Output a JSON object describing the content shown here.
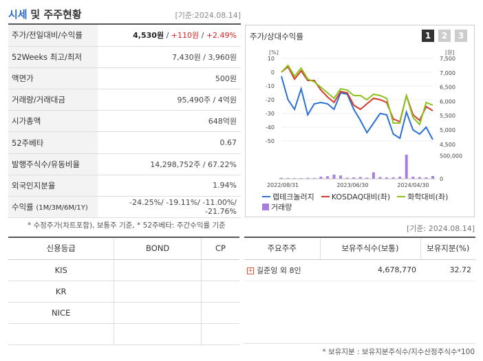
{
  "header": {
    "title_part1": "시세",
    "title_part2": "및 주주현황",
    "date": "[기준:2024.08.14]"
  },
  "info_rows": [
    {
      "label": "주가/전일대비/수익률",
      "price": "4,530원",
      "sep1": " / ",
      "change": "+110원",
      "sep2": " / ",
      "rate": "+2.49%"
    },
    {
      "label": "52Weeks 최고/최저",
      "value": "7,430원 / 3,960원"
    },
    {
      "label": "액면가",
      "value": "500원"
    },
    {
      "label": "거래량/거래대금",
      "value": "95,490주 / 4억원"
    },
    {
      "label": "시가총액",
      "value": "648억원"
    },
    {
      "label": "52주베타",
      "value": "0.67"
    },
    {
      "label": "발행주식수/유동비율",
      "value": "14,298,752주 / 67.22%"
    },
    {
      "label": "외국인지분율",
      "value": "1.94%"
    },
    {
      "label": "수익률",
      "label_sub": "(1M/3M/6M/1Y)",
      "value": "-24.25%/ -19.11%/ -11.00%/ -21.76%"
    }
  ],
  "note1": "* 수정주가(차트포함), 보통주 기준, * 52주베타: 주간수익률 기준",
  "chart_panel": {
    "title": "주가/상대수익률",
    "buttons": [
      "1",
      "2",
      "3"
    ],
    "legend": {
      "series1": "렙테크놀러지",
      "series2": "KOSDAQ대비(좌)",
      "series3": "화학대비(좌)",
      "volume": "거래량"
    }
  },
  "chart_data": {
    "type": "line",
    "left_unit": "[%]",
    "right_unit": "[원]",
    "left_ticks": [
      "10",
      "0",
      "-10",
      "-20",
      "-30",
      "-40",
      "-50"
    ],
    "right_ticks": [
      "7,500",
      "7,000",
      "6,500",
      "6,000",
      "5,500",
      "5,000",
      "4,500"
    ],
    "volume_ticks": [
      "500,000",
      "0"
    ],
    "x_labels": [
      "2022/08/31",
      "2023/06/30",
      "2024/04/30"
    ],
    "left_ylim": [
      -55,
      10
    ],
    "right_ylim": [
      4375,
      7500
    ],
    "series": [
      {
        "name": "렙테크놀러지",
        "axis": "left",
        "color": "#2a6fd6",
        "values": [
          -3,
          -20,
          -27,
          -12,
          -31,
          -23,
          -22,
          -23,
          -27,
          -15,
          -16,
          -27,
          -35,
          -44,
          -37,
          -30,
          -31,
          -45,
          -48,
          -29,
          -42,
          -45,
          -40,
          -49
        ]
      },
      {
        "name": "KOSDAQ대비(좌)",
        "axis": "left",
        "color": "#d03a2a",
        "values": [
          0,
          4,
          -5,
          1,
          -6,
          -6,
          -13,
          -18,
          -22,
          -14,
          -15,
          -24,
          -27,
          -23,
          -19,
          -20,
          -22,
          -34,
          -36,
          -17,
          -31,
          -35,
          -25,
          -28
        ]
      },
      {
        "name": "화학대비(좌)",
        "axis": "left",
        "color": "#8cc21c",
        "values": [
          0,
          5,
          -3,
          3,
          -5,
          -7,
          -11,
          -15,
          -19,
          -12,
          -13,
          -17,
          -17,
          -20,
          -16,
          -17,
          -19,
          -37,
          -37,
          -17,
          -33,
          -38,
          -22,
          -24
        ]
      }
    ],
    "volume": [
      22000,
      18000,
      16000,
      15000,
      20000,
      17000,
      45000,
      55000,
      90000,
      70000,
      25000,
      30000,
      38000,
      25000,
      140000,
      40000,
      30000,
      32000,
      45000,
      520000,
      45000,
      38000,
      30000,
      60000
    ],
    "volume_max": 700000
  },
  "date2": "[기준: 2024.08.14]",
  "credit": {
    "headers": [
      "신용등급",
      "BOND",
      "CP"
    ],
    "rows": [
      [
        "KIS",
        "",
        ""
      ],
      [
        "KR",
        "",
        ""
      ],
      [
        "NICE",
        "",
        ""
      ],
      [
        "",
        "",
        ""
      ]
    ]
  },
  "holders": {
    "headers": [
      "주요주주",
      "보유주식수(보통)",
      "보유지분(%)"
    ],
    "rows": [
      {
        "name": "길준잉 외 8인",
        "shares": "4,678,770",
        "pct": "32.72"
      }
    ]
  },
  "note2": "* 보유지분 : 보유지분주식수/지수산정주식수*100"
}
